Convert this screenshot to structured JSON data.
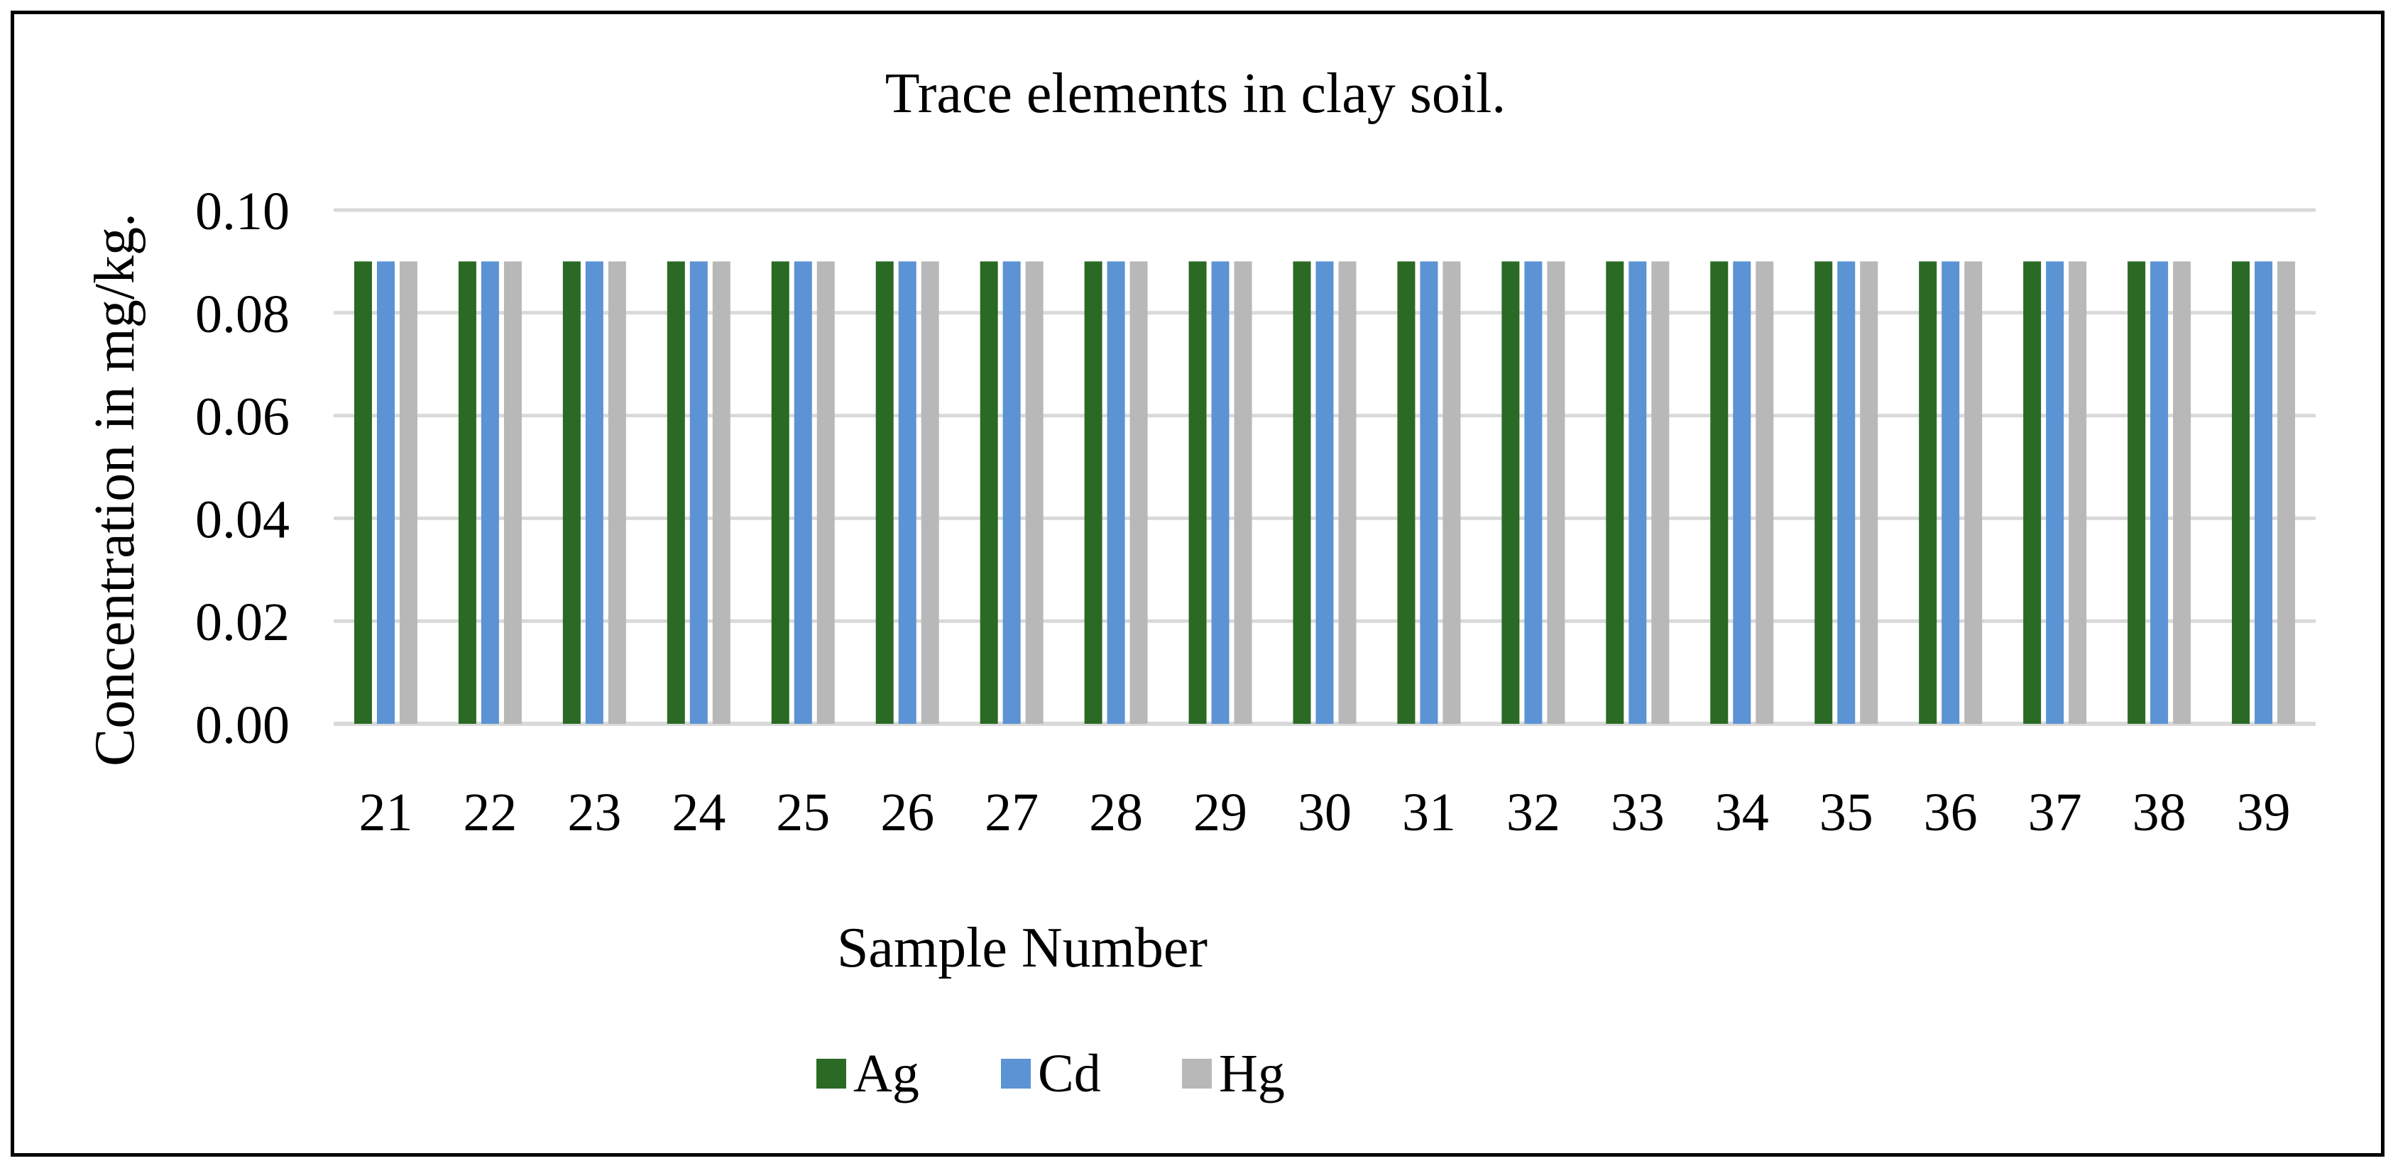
{
  "chart_data": {
    "type": "bar",
    "title": "Trace elements in clay soil.",
    "xlabel": "Sample Number",
    "ylabel": "Concentration in mg/kg.",
    "categories": [
      "21",
      "22",
      "23",
      "24",
      "25",
      "26",
      "27",
      "28",
      "29",
      "30",
      "31",
      "32",
      "33",
      "34",
      "35",
      "36",
      "37",
      "38",
      "39"
    ],
    "series": [
      {
        "name": "Ag",
        "color": "#2a6a24",
        "values": [
          0.09,
          0.09,
          0.09,
          0.09,
          0.09,
          0.09,
          0.09,
          0.09,
          0.09,
          0.09,
          0.09,
          0.09,
          0.09,
          0.09,
          0.09,
          0.09,
          0.09,
          0.09,
          0.09
        ]
      },
      {
        "name": "Cd",
        "color": "#5b93d4",
        "values": [
          0.09,
          0.09,
          0.09,
          0.09,
          0.09,
          0.09,
          0.09,
          0.09,
          0.09,
          0.09,
          0.09,
          0.09,
          0.09,
          0.09,
          0.09,
          0.09,
          0.09,
          0.09,
          0.09
        ]
      },
      {
        "name": "Hg",
        "color": "#b8b8b8",
        "values": [
          0.09,
          0.09,
          0.09,
          0.09,
          0.09,
          0.09,
          0.09,
          0.09,
          0.09,
          0.09,
          0.09,
          0.09,
          0.09,
          0.09,
          0.09,
          0.09,
          0.09,
          0.09,
          0.09
        ]
      }
    ],
    "ylim": [
      0,
      0.1
    ],
    "yticks": [
      "0.00",
      "0.02",
      "0.04",
      "0.06",
      "0.08",
      "0.10"
    ],
    "grid": true,
    "gridline_color": "#d9d9d9",
    "legend_position": "bottom"
  }
}
